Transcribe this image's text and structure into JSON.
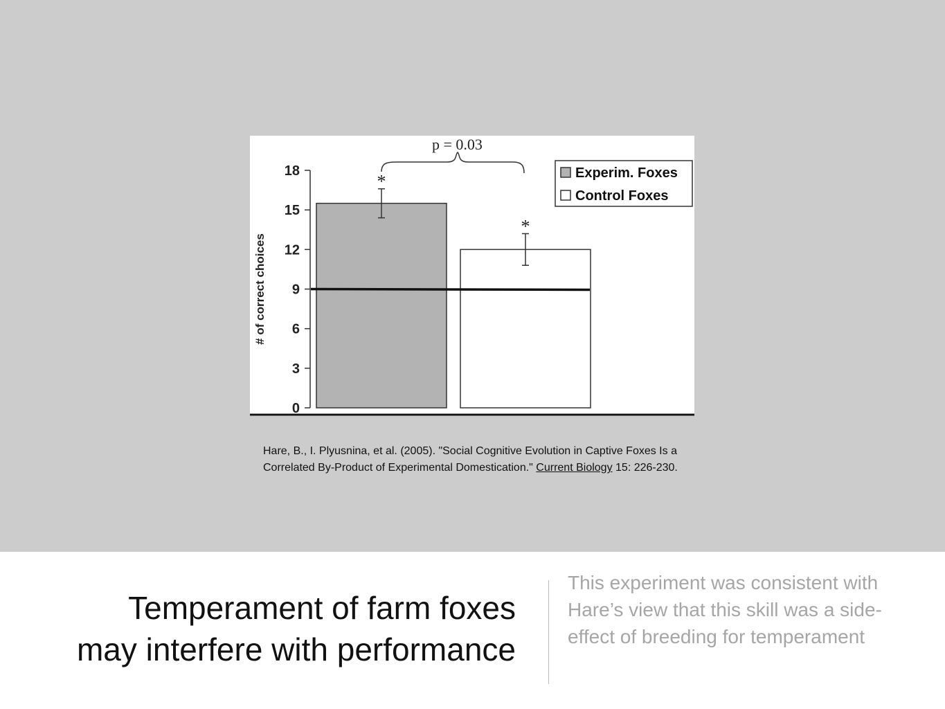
{
  "slide": {
    "title_line1": "Temperament of farm foxes",
    "title_line2": "may interfere with performance",
    "body_text": "This experiment was consistent with Hare’s view that this skill was a side-effect of breeding for temperament"
  },
  "citation": {
    "text_before": "Hare, B., I. Plyusnina, et al. (2005). \"Social Cognitive Evolution in Captive Foxes Is a Correlated By-Product of Experimental Domestication.\" ",
    "journal": "Current Biology",
    "text_after": " 15: 226-230."
  },
  "chart_data": {
    "type": "bar",
    "ylabel": "# of correct choices",
    "ylim": [
      0,
      18
    ],
    "yticks": [
      0,
      3,
      6,
      9,
      12,
      15,
      18
    ],
    "categories": [
      "Experim. Foxes",
      "Control Foxes"
    ],
    "values": [
      15.5,
      12.0
    ],
    "error": [
      1.1,
      1.2
    ],
    "colors": [
      "#b3b3b3",
      "#ffffff"
    ],
    "reference_line": 9,
    "significance_marks": [
      "*",
      "*"
    ],
    "annotation": "p = 0.03",
    "legend": {
      "position": "top-right",
      "entries": [
        "Experim. Foxes",
        "Control Foxes"
      ]
    },
    "grid": false
  }
}
